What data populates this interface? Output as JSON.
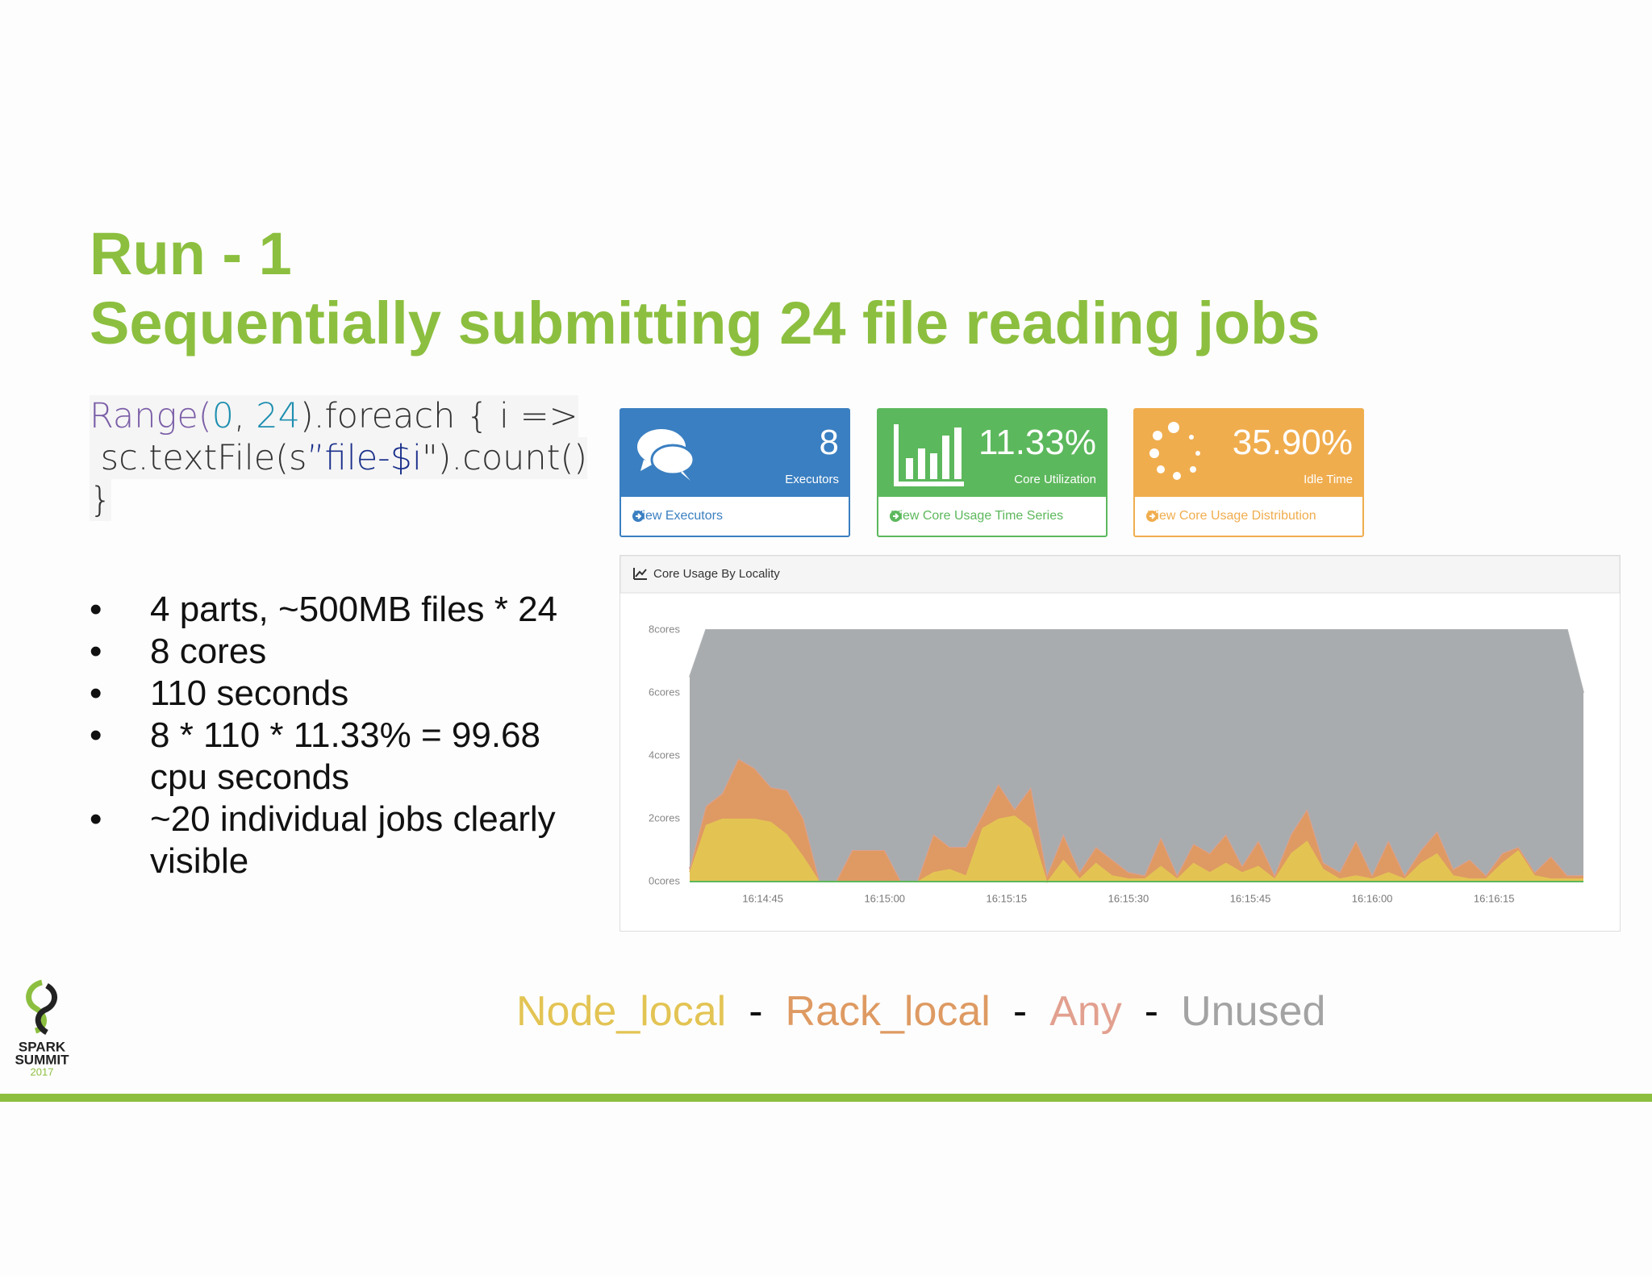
{
  "slide": {
    "title_lines": [
      "Run - 1",
      "Sequentially submitting 24 file reading jobs"
    ],
    "code_lines": [
      [
        {
          "text": "Range(",
          "color": "#7b5ea7"
        },
        {
          "text": "0",
          "color": "#1f8fb0"
        },
        {
          "text": ", ",
          "color": "#333333"
        },
        {
          "text": "24",
          "color": "#1f8fb0"
        },
        {
          "text": ").foreach { i =>",
          "color": "#333333"
        }
      ],
      [
        {
          "text": " sc.textFile(s",
          "color": "#333333"
        },
        {
          "text": "”file-$i",
          "color": "#1a2f8a"
        },
        {
          "text": "\").count()",
          "color": "#333333"
        }
      ],
      [
        {
          "text": "}",
          "color": "#333333"
        }
      ]
    ],
    "bullet_symbol": "•",
    "bullets": [
      "4 parts, ~500MB files * 24",
      "8 cores",
      "110 seconds",
      "8 * 110 * 11.33% = 99.68 cpu seconds",
      "~20 individual jobs clearly visible"
    ],
    "logo": [
      "SPARK",
      "SUMMIT",
      "2017"
    ]
  },
  "cards": [
    {
      "value": "8",
      "label": "Executors",
      "link": "View Executors",
      "color": "#3a7fc1"
    },
    {
      "value": "11.33%",
      "label": "Core Utilization",
      "link": "View Core Usage Time Series",
      "color": "#5cb85c"
    },
    {
      "value": "35.90%",
      "label": "Idle Time",
      "link": "View Core Usage Distribution",
      "color": "#f0ad4e"
    }
  ],
  "legend_separator": "-",
  "chart_data": {
    "type": "stacked_area",
    "title": "Core Usage By Locality",
    "x": [
      "16:14:36",
      "16:14:38",
      "16:14:40",
      "16:14:42",
      "16:14:44",
      "16:14:46",
      "16:14:48",
      "16:14:50",
      "16:14:52",
      "16:14:54",
      "16:14:56",
      "16:14:58",
      "16:15:00",
      "16:15:02",
      "16:15:04",
      "16:15:06",
      "16:15:08",
      "16:15:10",
      "16:15:12",
      "16:15:14",
      "16:15:16",
      "16:15:18",
      "16:15:20",
      "16:15:22",
      "16:15:24",
      "16:15:26",
      "16:15:28",
      "16:15:30",
      "16:15:32",
      "16:15:34",
      "16:15:36",
      "16:15:38",
      "16:15:40",
      "16:15:42",
      "16:15:44",
      "16:15:46",
      "16:15:48",
      "16:15:50",
      "16:15:52",
      "16:15:54",
      "16:15:56",
      "16:15:58",
      "16:16:00",
      "16:16:02",
      "16:16:04",
      "16:16:06",
      "16:16:08",
      "16:16:10",
      "16:16:12",
      "16:16:14",
      "16:16:16",
      "16:16:18",
      "16:16:20",
      "16:16:22",
      "16:16:24",
      "16:16:26"
    ],
    "series": [
      {
        "name": "Node_local",
        "color": "#e3c453",
        "values": [
          0.3,
          1.8,
          2.0,
          2.0,
          2.0,
          1.9,
          1.5,
          0.8,
          0,
          0,
          0,
          0,
          0,
          0,
          0,
          0.3,
          0.4,
          0.2,
          1.7,
          2.0,
          2.1,
          1.7,
          0,
          0.7,
          0.1,
          0.6,
          0.2,
          0.1,
          0.1,
          0.5,
          0.1,
          0.6,
          0.3,
          0.6,
          0.3,
          0.5,
          0.1,
          0.9,
          1.3,
          0.4,
          0.1,
          0.2,
          0.1,
          0.3,
          0.1,
          0.6,
          0.9,
          0.2,
          0.1,
          0.1,
          0.6,
          1.0,
          0.2,
          0.1,
          0.1,
          0.1
        ]
      },
      {
        "name": "Rack_local",
        "color": "#de9a62",
        "values": [
          0.1,
          0.6,
          0.8,
          1.9,
          1.6,
          1.1,
          1.4,
          1.2,
          0,
          0,
          1.0,
          1.0,
          1.0,
          0,
          0,
          1.2,
          0.7,
          0.9,
          0.4,
          1.1,
          0.2,
          1.3,
          0.2,
          0.8,
          0.2,
          0.5,
          0.5,
          0.2,
          0.1,
          0.9,
          0.1,
          0.6,
          0.6,
          0.9,
          0.2,
          0.8,
          0.1,
          0.6,
          1.0,
          0.2,
          0.2,
          1.1,
          0.1,
          1.0,
          0.1,
          0.4,
          0.7,
          0.2,
          0.6,
          0.1,
          0.3,
          0.1,
          0.1,
          0.7,
          0.1,
          0.1
        ]
      },
      {
        "name": "Any",
        "color": "#e2a08f",
        "values": [
          0,
          0,
          0,
          0,
          0,
          0,
          0,
          0,
          0,
          0,
          0,
          0,
          0,
          0,
          0,
          0,
          0,
          0,
          0,
          0,
          0,
          0,
          0,
          0,
          0,
          0,
          0,
          0,
          0,
          0,
          0,
          0,
          0,
          0,
          0,
          0,
          0,
          0,
          0,
          0,
          0,
          0,
          0,
          0,
          0,
          0,
          0,
          0,
          0,
          0,
          0,
          0,
          0,
          0,
          0,
          0
        ]
      },
      {
        "name": "Unused",
        "color": "#a9acae",
        "values": [
          6.1,
          5.6,
          5.2,
          4.1,
          4.4,
          5.0,
          5.1,
          6.0,
          8,
          8,
          7.0,
          7.0,
          7.0,
          8,
          8,
          6.5,
          6.9,
          6.9,
          5.9,
          4.9,
          5.7,
          5.0,
          7.8,
          6.5,
          7.7,
          6.9,
          7.3,
          7.7,
          7.8,
          6.6,
          7.8,
          6.8,
          7.1,
          6.5,
          7.5,
          6.7,
          7.8,
          6.5,
          5.7,
          7.4,
          7.7,
          6.7,
          7.8,
          6.7,
          7.8,
          7.0,
          6.4,
          7.6,
          7.3,
          7.8,
          7.1,
          6.9,
          7.7,
          7.2,
          7.8,
          5.8
        ]
      }
    ],
    "xlim": [
      "16:14:36",
      "16:16:26"
    ],
    "xticks": [
      "16:14:45",
      "16:15:00",
      "16:15:15",
      "16:15:30",
      "16:15:45",
      "16:16:00",
      "16:16:15"
    ],
    "ylim": [
      0,
      8.4
    ],
    "yticks": [
      {
        "value": 0,
        "label": "0cores"
      },
      {
        "value": 2,
        "label": "2cores"
      },
      {
        "value": 4,
        "label": "4cores"
      },
      {
        "value": 6,
        "label": "6cores"
      },
      {
        "value": 8,
        "label": "8cores"
      }
    ],
    "grid": false
  }
}
